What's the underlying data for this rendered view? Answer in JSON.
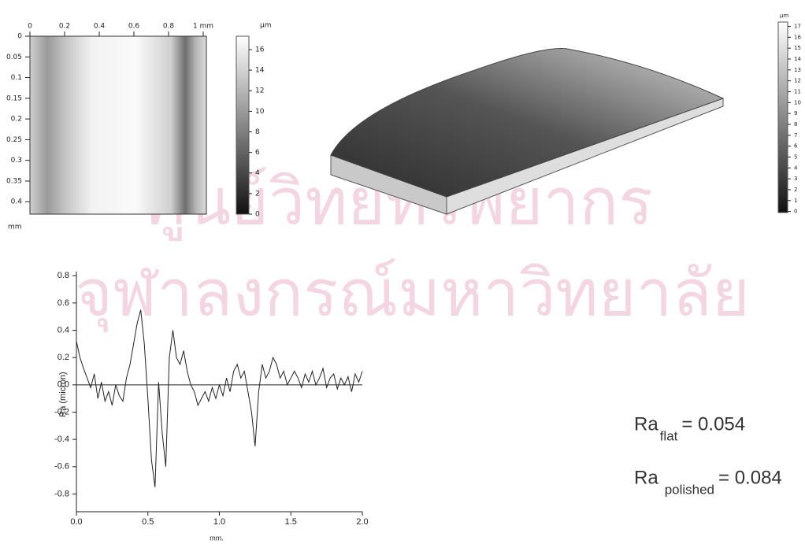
{
  "chart_data": [
    {
      "type": "heatmap",
      "xlim": [
        0,
        1
      ],
      "xticks": [
        0,
        0.2,
        0.4,
        0.6,
        0.8,
        {
          "value": 1,
          "label": "1 mm"
        }
      ],
      "ylim": [
        0,
        0.43
      ],
      "yticks": [
        0,
        0.05,
        0.1,
        0.15,
        0.2,
        0.25,
        0.3,
        0.35,
        0.4
      ],
      "ylabel": "mm",
      "colorbar_label": "µm",
      "colorbar_lim": [
        0,
        17.3
      ],
      "colorbar_ticks": [
        0,
        2,
        4,
        6,
        8,
        10,
        12,
        14,
        16
      ]
    },
    {
      "type": "surface3d",
      "colorbar_label": "µm",
      "colorbar_lim": [
        -0.1,
        17.4
      ],
      "colorbar_ticks": [
        0,
        1,
        2,
        3,
        4,
        5,
        6,
        7,
        8,
        9,
        10,
        11,
        12,
        13,
        14,
        15,
        16,
        17
      ]
    },
    {
      "type": "line",
      "xlabel": "mm.",
      "ylabel": "Ra (micron)",
      "xlim": [
        0,
        2
      ],
      "xticks": [
        {
          "value": 0,
          "label": "0.0"
        },
        0.5,
        {
          "value": 1,
          "label": "1.0"
        },
        1.5,
        {
          "value": 2,
          "label": "2.0"
        }
      ],
      "ylim": [
        -0.93,
        0.83
      ],
      "yticks": [
        -0.8,
        -0.6,
        -0.4,
        -0.2,
        {
          "value": 0,
          "label": "0.0"
        },
        0.2,
        0.4,
        0.6,
        0.8
      ],
      "x": [
        0,
        0.025,
        0.05,
        0.075,
        0.1,
        0.125,
        0.15,
        0.175,
        0.2,
        0.225,
        0.25,
        0.275,
        0.3,
        0.325,
        0.35,
        0.375,
        0.4,
        0.425,
        0.45,
        0.475,
        0.5,
        0.525,
        0.55,
        0.575,
        0.6,
        0.625,
        0.65,
        0.675,
        0.7,
        0.725,
        0.75,
        0.775,
        0.8,
        0.825,
        0.85,
        0.875,
        0.9,
        0.925,
        0.95,
        0.975,
        1,
        1.025,
        1.05,
        1.075,
        1.1,
        1.125,
        1.15,
        1.175,
        1.2,
        1.225,
        1.25,
        1.275,
        1.3,
        1.325,
        1.35,
        1.375,
        1.4,
        1.425,
        1.45,
        1.475,
        1.5,
        1.525,
        1.55,
        1.575,
        1.6,
        1.625,
        1.65,
        1.675,
        1.7,
        1.725,
        1.75,
        1.775,
        1.8,
        1.825,
        1.85,
        1.875,
        1.9,
        1.925,
        1.95,
        1.975,
        2
      ],
      "series": [
        {
          "color": "#222222",
          "values": [
            0.32,
            0.2,
            0.12,
            0.05,
            -0.02,
            0.08,
            -0.1,
            0.02,
            -0.12,
            -0.05,
            -0.15,
            0,
            -0.08,
            -0.12,
            0.05,
            0.15,
            0.3,
            0.45,
            0.55,
            0.3,
            -0.1,
            -0.55,
            -0.75,
            0.02,
            -0.35,
            -0.6,
            0.2,
            0.4,
            0.2,
            0.15,
            0.25,
            0.1,
            0,
            -0.05,
            -0.15,
            -0.1,
            -0.05,
            -0.12,
            -0.02,
            -0.1,
            0,
            -0.08,
            0.05,
            -0.05,
            0.1,
            0.15,
            0.05,
            0.1,
            -0.05,
            -0.2,
            -0.45,
            -0.05,
            0.15,
            0.05,
            0.1,
            0.2,
            0.15,
            0.05,
            0.1,
            0,
            0.05,
            0.1,
            0.05,
            -0.02,
            0.08,
            0.02,
            0.1,
            0,
            0.05,
            0.12,
            -0.02,
            0.05,
            0.08,
            -0.03,
            0.05,
            0,
            0.06,
            -0.05,
            0.08,
            0.02,
            0.1
          ]
        }
      ]
    }
  ],
  "results": [
    {
      "symbol": "Ra",
      "subscript": "flat",
      "value_text": "= 0.054"
    },
    {
      "symbol": "Ra",
      "subscript": "polished",
      "value_text": "= 0.084"
    }
  ],
  "watermark": [
    "ศูนย์วิทยทรัพยากร",
    "จุฬาลงกรณ์มหาวิทยาลัย"
  ]
}
